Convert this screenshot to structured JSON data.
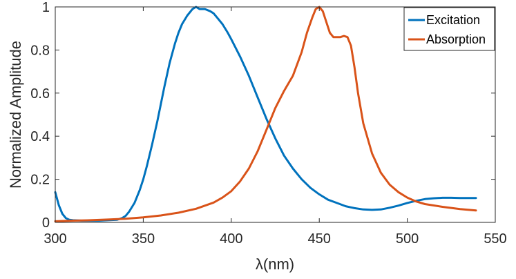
{
  "chart_data": {
    "type": "line",
    "title": "",
    "xlabel": "λ(nm)",
    "ylabel": "Normalized Amplitude",
    "xlim": [
      300,
      550
    ],
    "ylim": [
      0,
      1
    ],
    "xticks": [
      300,
      350,
      400,
      450,
      500,
      550
    ],
    "yticks": [
      0,
      0.2,
      0.4,
      0.6,
      0.8,
      1
    ],
    "ytick_labels": [
      "0",
      "0.2",
      "0.4",
      "0.6",
      "0.8",
      "1"
    ],
    "grid": false,
    "legend_position": "top-right",
    "series": [
      {
        "name": "Excitation",
        "color": "#0072BD",
        "x": [
          300,
          302,
          304,
          306,
          308,
          310,
          315,
          320,
          325,
          330,
          335,
          338,
          340,
          342,
          345,
          348,
          350,
          352,
          355,
          358,
          360,
          362,
          365,
          368,
          370,
          372,
          375,
          378,
          380,
          382,
          385,
          388,
          390,
          392,
          395,
          398,
          400,
          405,
          410,
          415,
          420,
          425,
          430,
          435,
          440,
          445,
          450,
          455,
          460,
          465,
          470,
          475,
          480,
          485,
          490,
          495,
          500,
          505,
          510,
          515,
          520,
          525,
          530,
          535,
          539
        ],
        "y": [
          0.14,
          0.08,
          0.04,
          0.02,
          0.012,
          0.01,
          0.008,
          0.008,
          0.008,
          0.01,
          0.012,
          0.02,
          0.03,
          0.05,
          0.09,
          0.15,
          0.2,
          0.26,
          0.36,
          0.47,
          0.55,
          0.63,
          0.74,
          0.83,
          0.88,
          0.92,
          0.96,
          0.99,
          1.0,
          0.99,
          0.99,
          0.98,
          0.97,
          0.95,
          0.92,
          0.88,
          0.85,
          0.77,
          0.68,
          0.58,
          0.48,
          0.39,
          0.31,
          0.25,
          0.2,
          0.16,
          0.13,
          0.105,
          0.09,
          0.075,
          0.066,
          0.06,
          0.058,
          0.06,
          0.068,
          0.078,
          0.09,
          0.1,
          0.108,
          0.112,
          0.114,
          0.114,
          0.113,
          0.113,
          0.113
        ]
      },
      {
        "name": "Absorption",
        "color": "#D95319",
        "x": [
          300,
          310,
          320,
          330,
          340,
          350,
          360,
          370,
          380,
          390,
          395,
          400,
          405,
          410,
          415,
          420,
          425,
          430,
          435,
          440,
          443,
          446,
          448,
          450,
          452,
          454,
          456,
          458,
          460,
          462,
          464,
          466,
          468,
          470,
          472,
          475,
          480,
          485,
          490,
          495,
          500,
          505,
          510,
          520,
          530,
          539
        ],
        "y": [
          0.005,
          0.008,
          0.01,
          0.013,
          0.017,
          0.023,
          0.032,
          0.045,
          0.063,
          0.092,
          0.115,
          0.145,
          0.19,
          0.25,
          0.33,
          0.43,
          0.53,
          0.61,
          0.68,
          0.79,
          0.88,
          0.95,
          0.99,
          1.0,
          0.98,
          0.93,
          0.88,
          0.86,
          0.86,
          0.86,
          0.865,
          0.86,
          0.82,
          0.72,
          0.6,
          0.46,
          0.32,
          0.23,
          0.175,
          0.14,
          0.115,
          0.097,
          0.085,
          0.072,
          0.062,
          0.055
        ]
      }
    ]
  }
}
